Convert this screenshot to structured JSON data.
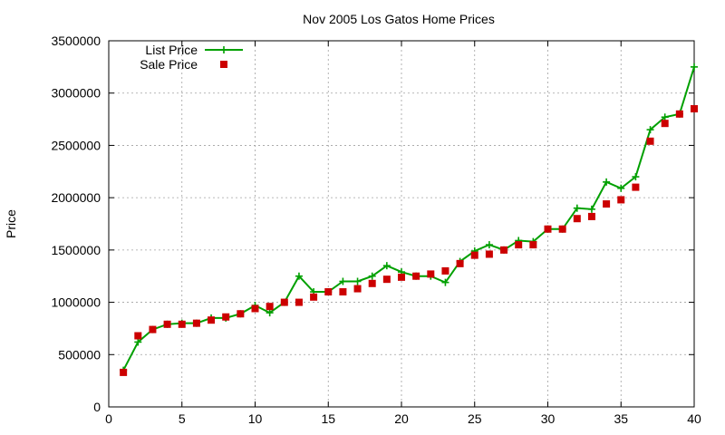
{
  "chart_data": {
    "type": "line",
    "title": "Nov 2005 Los Gatos Home Prices",
    "xlabel": "",
    "ylabel": "Price",
    "xlim": [
      0,
      40
    ],
    "ylim": [
      0,
      3500000
    ],
    "x_ticks": [
      0,
      5,
      10,
      15,
      20,
      25,
      30,
      35,
      40
    ],
    "y_ticks": [
      0,
      500000,
      1000000,
      1500000,
      2000000,
      2500000,
      3000000,
      3500000
    ],
    "grid": true,
    "legend_position": "top-left",
    "series": [
      {
        "name": "List Price",
        "style": "line-plus",
        "color": "#00a000",
        "x": [
          1,
          2,
          3,
          4,
          5,
          6,
          7,
          8,
          9,
          10,
          11,
          12,
          13,
          14,
          15,
          16,
          17,
          18,
          19,
          20,
          21,
          22,
          23,
          24,
          25,
          26,
          27,
          28,
          29,
          30,
          31,
          32,
          33,
          34,
          35,
          36,
          37,
          38,
          39,
          40
        ],
        "values": [
          350000,
          620000,
          740000,
          790000,
          800000,
          800000,
          850000,
          850000,
          890000,
          970000,
          900000,
          1000000,
          1250000,
          1100000,
          1100000,
          1200000,
          1200000,
          1250000,
          1350000,
          1290000,
          1250000,
          1250000,
          1190000,
          1390000,
          1490000,
          1550000,
          1500000,
          1590000,
          1580000,
          1700000,
          1700000,
          1900000,
          1890000,
          2150000,
          2090000,
          2200000,
          2650000,
          2770000,
          2800000,
          3250000
        ]
      },
      {
        "name": "Sale Price",
        "style": "square-markers",
        "color": "#cc0000",
        "x": [
          1,
          2,
          3,
          4,
          5,
          6,
          7,
          8,
          9,
          10,
          11,
          12,
          13,
          14,
          15,
          16,
          17,
          18,
          19,
          20,
          21,
          22,
          23,
          24,
          25,
          26,
          27,
          28,
          29,
          30,
          31,
          32,
          33,
          34,
          35,
          36,
          37,
          38,
          39,
          40
        ],
        "values": [
          330000,
          680000,
          740000,
          790000,
          790000,
          800000,
          830000,
          860000,
          890000,
          940000,
          960000,
          1000000,
          1000000,
          1050000,
          1100000,
          1100000,
          1130000,
          1180000,
          1220000,
          1240000,
          1250000,
          1270000,
          1300000,
          1370000,
          1450000,
          1460000,
          1500000,
          1550000,
          1550000,
          1700000,
          1700000,
          1800000,
          1820000,
          1940000,
          1980000,
          2100000,
          2540000,
          2710000,
          2800000,
          2850000
        ]
      }
    ]
  }
}
